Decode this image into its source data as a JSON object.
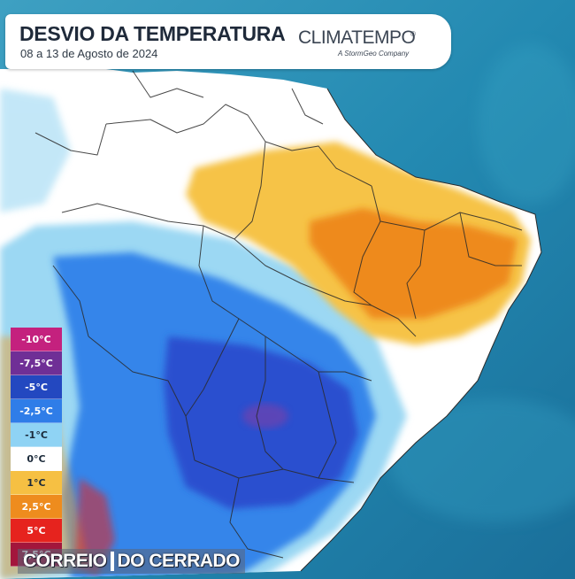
{
  "header": {
    "title": "DESVIO DA TEMPERATURA",
    "subtitle": "08 a 13 de Agosto de 2024",
    "brand": "CLIMATEMPO",
    "brand_mark": "®",
    "brand_tagline": "A StormGeo Company"
  },
  "legend": [
    {
      "label": "-10°C",
      "color": "#c4217e",
      "text_color": "#ffffff"
    },
    {
      "label": "-7,5°C",
      "color": "#6f2f96",
      "text_color": "#ffffff"
    },
    {
      "label": "-5°C",
      "color": "#2348c0",
      "text_color": "#ffffff"
    },
    {
      "label": "-2,5°C",
      "color": "#2f7de8",
      "text_color": "#ffffff"
    },
    {
      "label": "-1°C",
      "color": "#8fd3f4",
      "text_color": "#1b2a3a"
    },
    {
      "label": "0°C",
      "color": "#ffffff",
      "text_color": "#1b2a3a"
    },
    {
      "label": "1°C",
      "color": "#f6c043",
      "text_color": "#1b2a3a"
    },
    {
      "label": "2,5°C",
      "color": "#ee8c1e",
      "text_color": "#ffffff"
    },
    {
      "label": "5°C",
      "color": "#e6231e",
      "text_color": "#ffffff"
    },
    {
      "label": "7,5°C",
      "color": "#a3163c",
      "text_color": "#ffffff"
    }
  ],
  "watermark": {
    "part1": "CORREIO",
    "part2": "DO CERRADO"
  },
  "colors": {
    "ocean": "#1f7fa6",
    "ocean_light": "#4aa7c4",
    "border": "#2a2a2a"
  }
}
